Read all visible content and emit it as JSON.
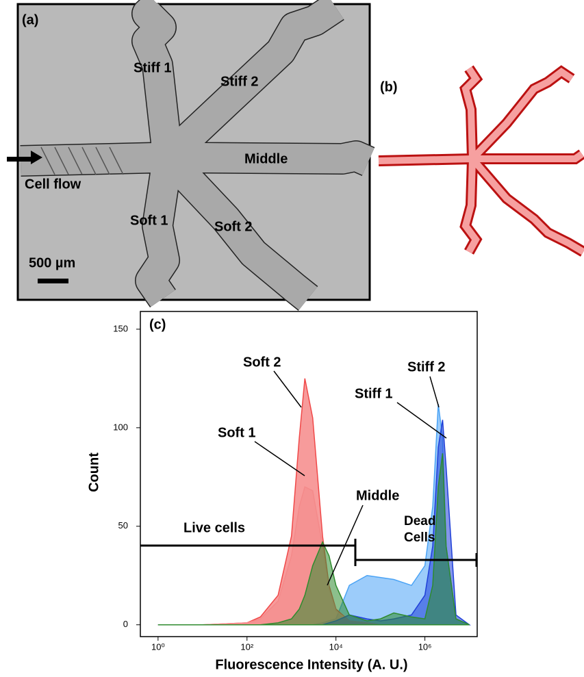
{
  "panel_a": {
    "label": "(a)",
    "channels": [
      "Stiff 1",
      "Stiff 2",
      "Middle",
      "Cell flow",
      "Soft 1",
      "Soft 2"
    ],
    "scale_bar": "500 µm"
  },
  "panel_b": {
    "label": "(b)"
  },
  "chart_data": {
    "type": "area",
    "panel_label": "(c)",
    "x_label": "Fluorescence Intensity (A. U.)",
    "y_label": "Count",
    "log_x": true,
    "xlim": [
      0.4,
      15000000
    ],
    "xticks": [
      {
        "value": 1,
        "label": "10⁰"
      },
      {
        "value": 100,
        "label": "10²"
      },
      {
        "value": 10000,
        "label": "10⁴"
      },
      {
        "value": 1000000,
        "label": "10⁶"
      }
    ],
    "ylim": [
      -6,
      159
    ],
    "yticks": [
      0,
      50,
      100,
      150
    ],
    "annotations": {
      "live": "Live cells",
      "dead": "Dead Cells"
    },
    "x": [
      1,
      10,
      100,
      200,
      500,
      1000,
      1500,
      2000,
      3000,
      5000,
      7000,
      10000,
      20000,
      50000,
      100000,
      200000,
      500000,
      1000000,
      1500000,
      2000000,
      2500000,
      3000000,
      5000000,
      10000000
    ],
    "series": [
      {
        "name": "Stiff 2",
        "color": "#4aa3f5",
        "values": [
          0,
          0,
          0,
          0,
          0,
          0,
          0,
          0,
          0,
          1,
          2,
          3,
          20,
          25,
          24,
          23,
          20,
          30,
          60,
          112,
          95,
          40,
          3,
          0
        ]
      },
      {
        "name": "Soft 2",
        "color": "#f04848",
        "values": [
          0,
          0,
          1,
          4,
          15,
          45,
          95,
          125,
          105,
          45,
          20,
          8,
          2,
          1,
          0,
          0,
          0,
          0,
          0,
          0,
          0,
          0,
          0,
          0
        ]
      },
      {
        "name": "Soft 1",
        "color": "#f48a8a",
        "values": [
          0,
          0,
          1,
          3,
          12,
          35,
          60,
          70,
          68,
          40,
          18,
          7,
          2,
          1,
          0,
          0,
          0,
          0,
          0,
          0,
          0,
          0,
          0,
          0
        ]
      },
      {
        "name": "Stiff 1",
        "color": "#1f3fd8",
        "values": [
          0,
          0,
          0,
          0,
          0,
          0,
          0,
          0,
          0,
          0,
          1,
          2,
          5,
          3,
          2,
          3,
          5,
          15,
          40,
          90,
          104,
          80,
          5,
          0
        ]
      },
      {
        "name": "Middle",
        "color": "#2e8b2e",
        "values": [
          0,
          0,
          0,
          0,
          1,
          3,
          8,
          15,
          30,
          42,
          35,
          20,
          5,
          2,
          3,
          6,
          4,
          3,
          20,
          70,
          87,
          40,
          3,
          0
        ]
      }
    ]
  }
}
